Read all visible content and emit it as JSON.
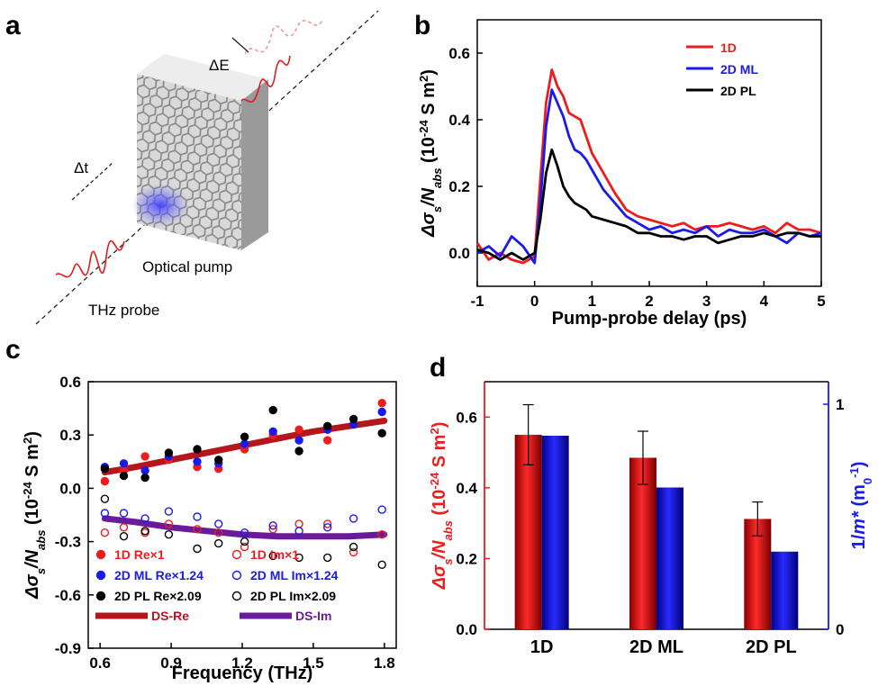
{
  "panel_labels": {
    "a": "a",
    "b": "b",
    "c": "c",
    "d": "d"
  },
  "schematic": {
    "delta_t": "Δt",
    "delta_e": "ΔE",
    "optical_pump": "Optical pump",
    "thz_probe": "THz probe"
  },
  "colors": {
    "red": "#ee1c1c",
    "blue": "#1a1aee",
    "black": "#000000",
    "darkred": "#b5161c",
    "purple": "#6a1b9a"
  },
  "chart_data": [
    {
      "id": "b",
      "type": "line",
      "xlabel": "Pump-probe delay (ps)",
      "ylabel_main": "Δσ",
      "ylabel_sub1": "s",
      "ylabel_mid": "/N",
      "ylabel_sub2": "abs",
      "ylabel_unit_pre": "(10",
      "ylabel_unit_sup": "-24",
      "ylabel_unit_post": " S m",
      "ylabel_unit_sup2": "2",
      "ylabel_close": ")",
      "xlim": [
        -1,
        5
      ],
      "ylim": [
        -0.1,
        0.7
      ],
      "xticks": [
        "-1",
        "0",
        "1",
        "2",
        "3",
        "4",
        "5"
      ],
      "yticks": [
        "0.0",
        "0.2",
        "0.4",
        "0.6"
      ],
      "x": [
        -1.0,
        -0.8,
        -0.6,
        -0.4,
        -0.2,
        0.0,
        0.1,
        0.2,
        0.3,
        0.4,
        0.5,
        0.6,
        0.7,
        0.8,
        0.9,
        1.0,
        1.2,
        1.4,
        1.6,
        1.8,
        2.0,
        2.2,
        2.4,
        2.6,
        2.8,
        3.0,
        3.2,
        3.4,
        3.6,
        3.8,
        4.0,
        4.2,
        4.4,
        4.6,
        4.8,
        5.0
      ],
      "series": [
        {
          "name": "1D",
          "color": "#ee1c1c",
          "values": [
            0.03,
            -0.02,
            0.0,
            -0.02,
            -0.03,
            -0.01,
            0.22,
            0.45,
            0.55,
            0.5,
            0.47,
            0.42,
            0.41,
            0.4,
            0.35,
            0.3,
            0.24,
            0.18,
            0.13,
            0.11,
            0.1,
            0.09,
            0.08,
            0.09,
            0.07,
            0.08,
            0.08,
            0.09,
            0.08,
            0.07,
            0.08,
            0.06,
            0.09,
            0.07,
            0.07,
            0.06
          ]
        },
        {
          "name": "2D ML",
          "color": "#1a1aee",
          "values": [
            0.0,
            0.02,
            -0.01,
            0.05,
            0.02,
            -0.03,
            0.15,
            0.38,
            0.49,
            0.45,
            0.41,
            0.35,
            0.31,
            0.3,
            0.28,
            0.25,
            0.19,
            0.15,
            0.11,
            0.09,
            0.07,
            0.08,
            0.06,
            0.07,
            0.06,
            0.08,
            0.05,
            0.07,
            0.06,
            0.06,
            0.07,
            0.05,
            0.03,
            0.06,
            0.05,
            0.06
          ]
        },
        {
          "name": "2D PL",
          "color": "#000000",
          "values": [
            0.01,
            0.0,
            -0.02,
            0.0,
            -0.02,
            0.0,
            0.1,
            0.24,
            0.31,
            0.26,
            0.2,
            0.17,
            0.15,
            0.14,
            0.13,
            0.11,
            0.1,
            0.09,
            0.08,
            0.06,
            0.06,
            0.05,
            0.05,
            0.04,
            0.05,
            0.05,
            0.03,
            0.04,
            0.05,
            0.05,
            0.06,
            0.05,
            0.06,
            0.06,
            0.05,
            0.05
          ]
        }
      ],
      "legend": "top-right"
    },
    {
      "id": "c",
      "type": "scatter",
      "xlabel": "Frequency (THz)",
      "ylabel_main": "Δσ",
      "ylabel_sub1": "s",
      "ylabel_mid": "/N",
      "ylabel_sub2": "abs",
      "ylabel_unit_pre": "(10",
      "ylabel_unit_sup": "-24",
      "ylabel_unit_post": " S m",
      "ylabel_unit_sup2": "2",
      "ylabel_close": ")",
      "xlim": [
        0.55,
        1.85
      ],
      "ylim": [
        -0.9,
        0.6
      ],
      "xticks": [
        "0.6",
        "0.9",
        "1.2",
        "1.5",
        "1.8"
      ],
      "yticks": [
        "-0.9",
        "-0.6",
        "-0.3",
        "0.0",
        "0.3",
        "0.6"
      ],
      "x": [
        0.62,
        0.7,
        0.79,
        0.89,
        1.01,
        1.1,
        1.21,
        1.33,
        1.44,
        1.56,
        1.67,
        1.79
      ],
      "series": [
        {
          "name": "1D Re×1",
          "color": "#ee1c1c",
          "marker": "filled",
          "values": [
            0.04,
            0.1,
            0.18,
            0.16,
            0.12,
            0.11,
            0.22,
            0.3,
            0.33,
            0.27,
            0.36,
            0.48
          ]
        },
        {
          "name": "1D Im×1",
          "color": "#ee1c1c",
          "marker": "open",
          "values": [
            -0.25,
            -0.22,
            -0.25,
            -0.2,
            -0.23,
            -0.25,
            -0.33,
            -0.23,
            -0.2,
            -0.2,
            -0.36,
            -0.26
          ]
        },
        {
          "name": "2D ML Re×1.24",
          "color": "#1a1aee",
          "marker": "filled",
          "values": [
            0.12,
            0.14,
            0.1,
            0.18,
            0.15,
            0.14,
            0.25,
            0.32,
            0.27,
            0.33,
            0.36,
            0.43
          ]
        },
        {
          "name": "2D ML Im×1.24",
          "color": "#1a1aee",
          "marker": "open",
          "values": [
            -0.14,
            -0.14,
            -0.17,
            -0.13,
            -0.16,
            -0.2,
            -0.25,
            -0.21,
            -0.24,
            -0.22,
            -0.17,
            -0.12
          ]
        },
        {
          "name": "2D PL Re×2.09",
          "color": "#000000",
          "marker": "filled",
          "values": [
            0.11,
            0.07,
            0.06,
            0.2,
            0.22,
            0.16,
            0.29,
            0.44,
            0.21,
            0.35,
            0.39,
            0.31
          ]
        },
        {
          "name": "2D PL Im×2.09",
          "color": "#000000",
          "marker": "open",
          "values": [
            -0.06,
            -0.27,
            -0.24,
            -0.26,
            -0.34,
            -0.31,
            -0.3,
            -0.38,
            -0.39,
            -0.39,
            -0.33,
            -0.43
          ]
        }
      ],
      "fits": [
        {
          "name": "DS-Re",
          "color": "#b5161c",
          "x": [
            0.62,
            0.75,
            0.9,
            1.05,
            1.2,
            1.35,
            1.5,
            1.65,
            1.8
          ],
          "values": [
            0.09,
            0.12,
            0.16,
            0.2,
            0.24,
            0.28,
            0.32,
            0.35,
            0.38
          ]
        },
        {
          "name": "DS-Im",
          "color": "#6a1b9a",
          "x": [
            0.62,
            0.75,
            0.9,
            1.05,
            1.2,
            1.35,
            1.5,
            1.65,
            1.8
          ],
          "values": [
            -0.17,
            -0.19,
            -0.22,
            -0.24,
            -0.26,
            -0.27,
            -0.27,
            -0.27,
            -0.26
          ]
        }
      ],
      "legend": "bottom-left"
    },
    {
      "id": "d",
      "type": "bar",
      "categories": [
        "1D",
        "2D ML",
        "2D PL"
      ],
      "ylabel_main": "Δσ",
      "ylabel_sub1": "s",
      "ylabel_mid": "/N",
      "ylabel_sub2": "abs",
      "ylabel_unit_pre": "(10",
      "ylabel_unit_sup": "-24",
      "ylabel_unit_post": " S m",
      "ylabel_unit_sup2": "2",
      "ylabel_close": ")",
      "y2label_pre": "1/",
      "y2label_m": "m",
      "y2label_star": "*",
      "y2label_paren": " (m",
      "y2label_sub": "0",
      "y2label_sup": "-1",
      "y2label_close": ")",
      "ylim": [
        0,
        0.7
      ],
      "y2lim": [
        0,
        1.1
      ],
      "yticks": [
        "0.0",
        "0.2",
        "0.4",
        "0.6"
      ],
      "y2ticks": [
        "0",
        "1"
      ],
      "series": [
        {
          "name": "Δσs/Nabs",
          "color": "#ee1c1c",
          "axis": "left",
          "values": [
            0.55,
            0.485,
            0.312
          ],
          "errors": [
            0.085,
            0.075,
            0.048
          ]
        },
        {
          "name": "1/m*",
          "color": "#1a1aee",
          "axis": "right",
          "values": [
            0.86,
            0.63,
            0.345
          ]
        }
      ]
    }
  ]
}
